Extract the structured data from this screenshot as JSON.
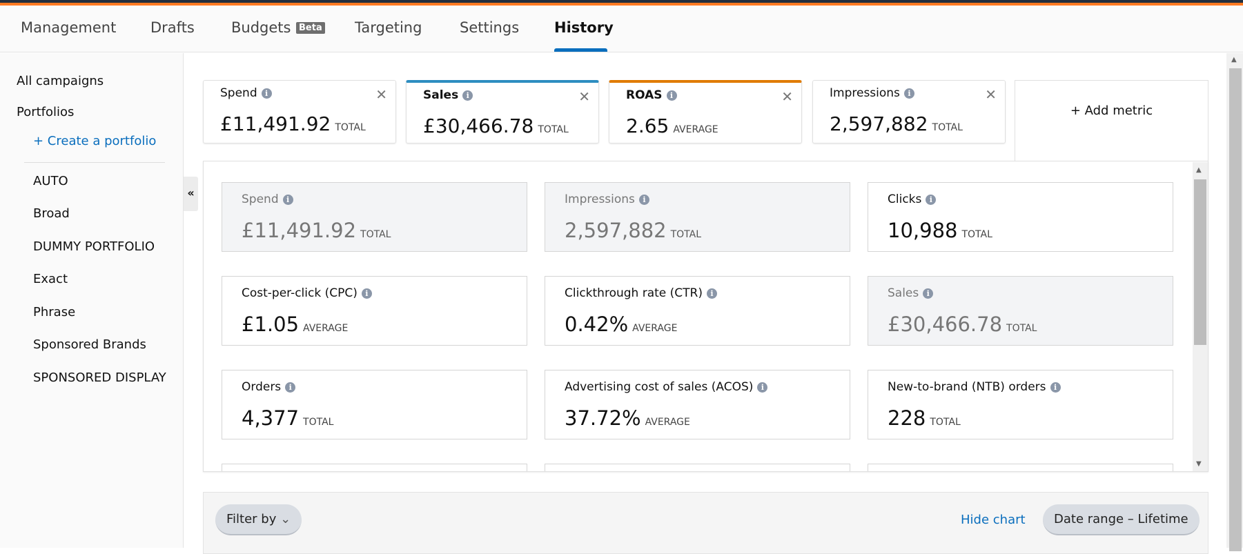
{
  "tabs": [
    {
      "label": "Management"
    },
    {
      "label": "Drafts"
    },
    {
      "label": "Budgets",
      "badge": "Beta"
    },
    {
      "label": "Targeting"
    },
    {
      "label": "Settings"
    },
    {
      "label": "History",
      "active": true
    }
  ],
  "sidebar": {
    "all_campaigns": "All campaigns",
    "portfolios": "Portfolios",
    "create_portfolio": "+ Create a portfolio",
    "items": [
      "AUTO",
      "Broad",
      "DUMMY PORTFOLIO",
      "Exact",
      "Phrase",
      "Sponsored Brands",
      "SPONSORED DISPLAY"
    ],
    "collapse_icon": "«"
  },
  "selected_metrics": [
    {
      "label": "Spend",
      "value": "£11,491.92",
      "unit": "TOTAL"
    },
    {
      "label": "Sales",
      "value": "£30,466.78",
      "unit": "TOTAL",
      "color": "#2d8dc0"
    },
    {
      "label": "ROAS",
      "value": "2.65",
      "unit": "AVERAGE",
      "color": "#e07b00"
    },
    {
      "label": "Impressions",
      "value": "2,597,882",
      "unit": "TOTAL"
    }
  ],
  "add_metric": "+ Add metric",
  "metric_grid": [
    {
      "label": "Spend",
      "value": "£11,491.92",
      "unit": "TOTAL",
      "selected": true
    },
    {
      "label": "Impressions",
      "value": "2,597,882",
      "unit": "TOTAL",
      "selected": true
    },
    {
      "label": "Clicks",
      "value": "10,988",
      "unit": "TOTAL"
    },
    {
      "label": "Cost-per-click (CPC)",
      "value": "£1.05",
      "unit": "AVERAGE"
    },
    {
      "label": "Clickthrough rate (CTR)",
      "value": "0.42%",
      "unit": "AVERAGE"
    },
    {
      "label": "Sales",
      "value": "£30,466.78",
      "unit": "TOTAL",
      "selected": true
    },
    {
      "label": "Orders",
      "value": "4,377",
      "unit": "TOTAL"
    },
    {
      "label": "Advertising cost of sales (ACOS)",
      "value": "37.72%",
      "unit": "AVERAGE"
    },
    {
      "label": "New-to-brand (NTB) orders",
      "value": "228",
      "unit": "TOTAL"
    }
  ],
  "filter": {
    "filter_by": "Filter by",
    "hide_chart": "Hide chart",
    "date_range": "Date range – Lifetime"
  }
}
